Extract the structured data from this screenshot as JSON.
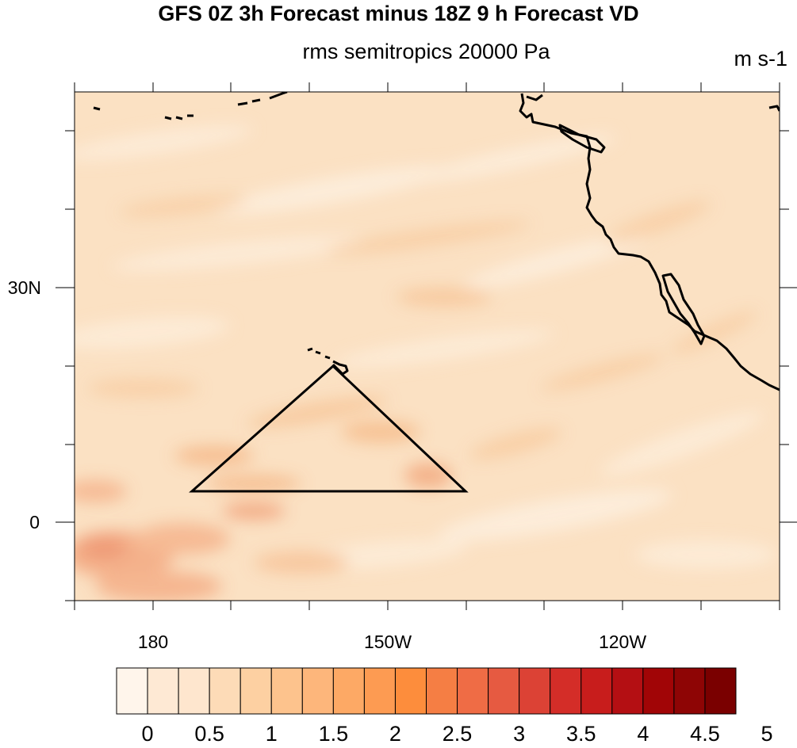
{
  "title": "GFS 0Z 3h Forecast minus 18Z 9 h Forecast VD",
  "subtitle": "rms semitropics 20000 Pa",
  "units": "m s-1",
  "map": {
    "lon_labels": [
      "180",
      "150W",
      "120W"
    ],
    "lat_labels": [
      "30N",
      "0"
    ],
    "lon_range": [
      "170E",
      "100W"
    ],
    "lat_range": [
      "10S",
      "55N"
    ],
    "region_outline": "triangle"
  },
  "colorbar": {
    "labels": [
      "0",
      "0.5",
      "1",
      "1.5",
      "2",
      "2.5",
      "3",
      "3.5",
      "4",
      "4.5",
      "5"
    ],
    "colors": [
      "#fff5eb",
      "#fee9d4",
      "#fee6ce",
      "#fddbb7",
      "#fdd0a2",
      "#fdc38d",
      "#fdb67b",
      "#fda965",
      "#fd9b52",
      "#fd8d3c",
      "#f57e44",
      "#ef6c45",
      "#e65a41",
      "#dc4235",
      "#d42d28",
      "#c81d1c",
      "#b40f13",
      "#a10506",
      "#8e0505",
      "#7a0000"
    ]
  },
  "colors": {
    "field_base": "#fbe0c0",
    "field_light": "#fdebd6",
    "field_mid": "#f9cda3",
    "field_high": "#f4a883",
    "coastline": "#000000"
  }
}
